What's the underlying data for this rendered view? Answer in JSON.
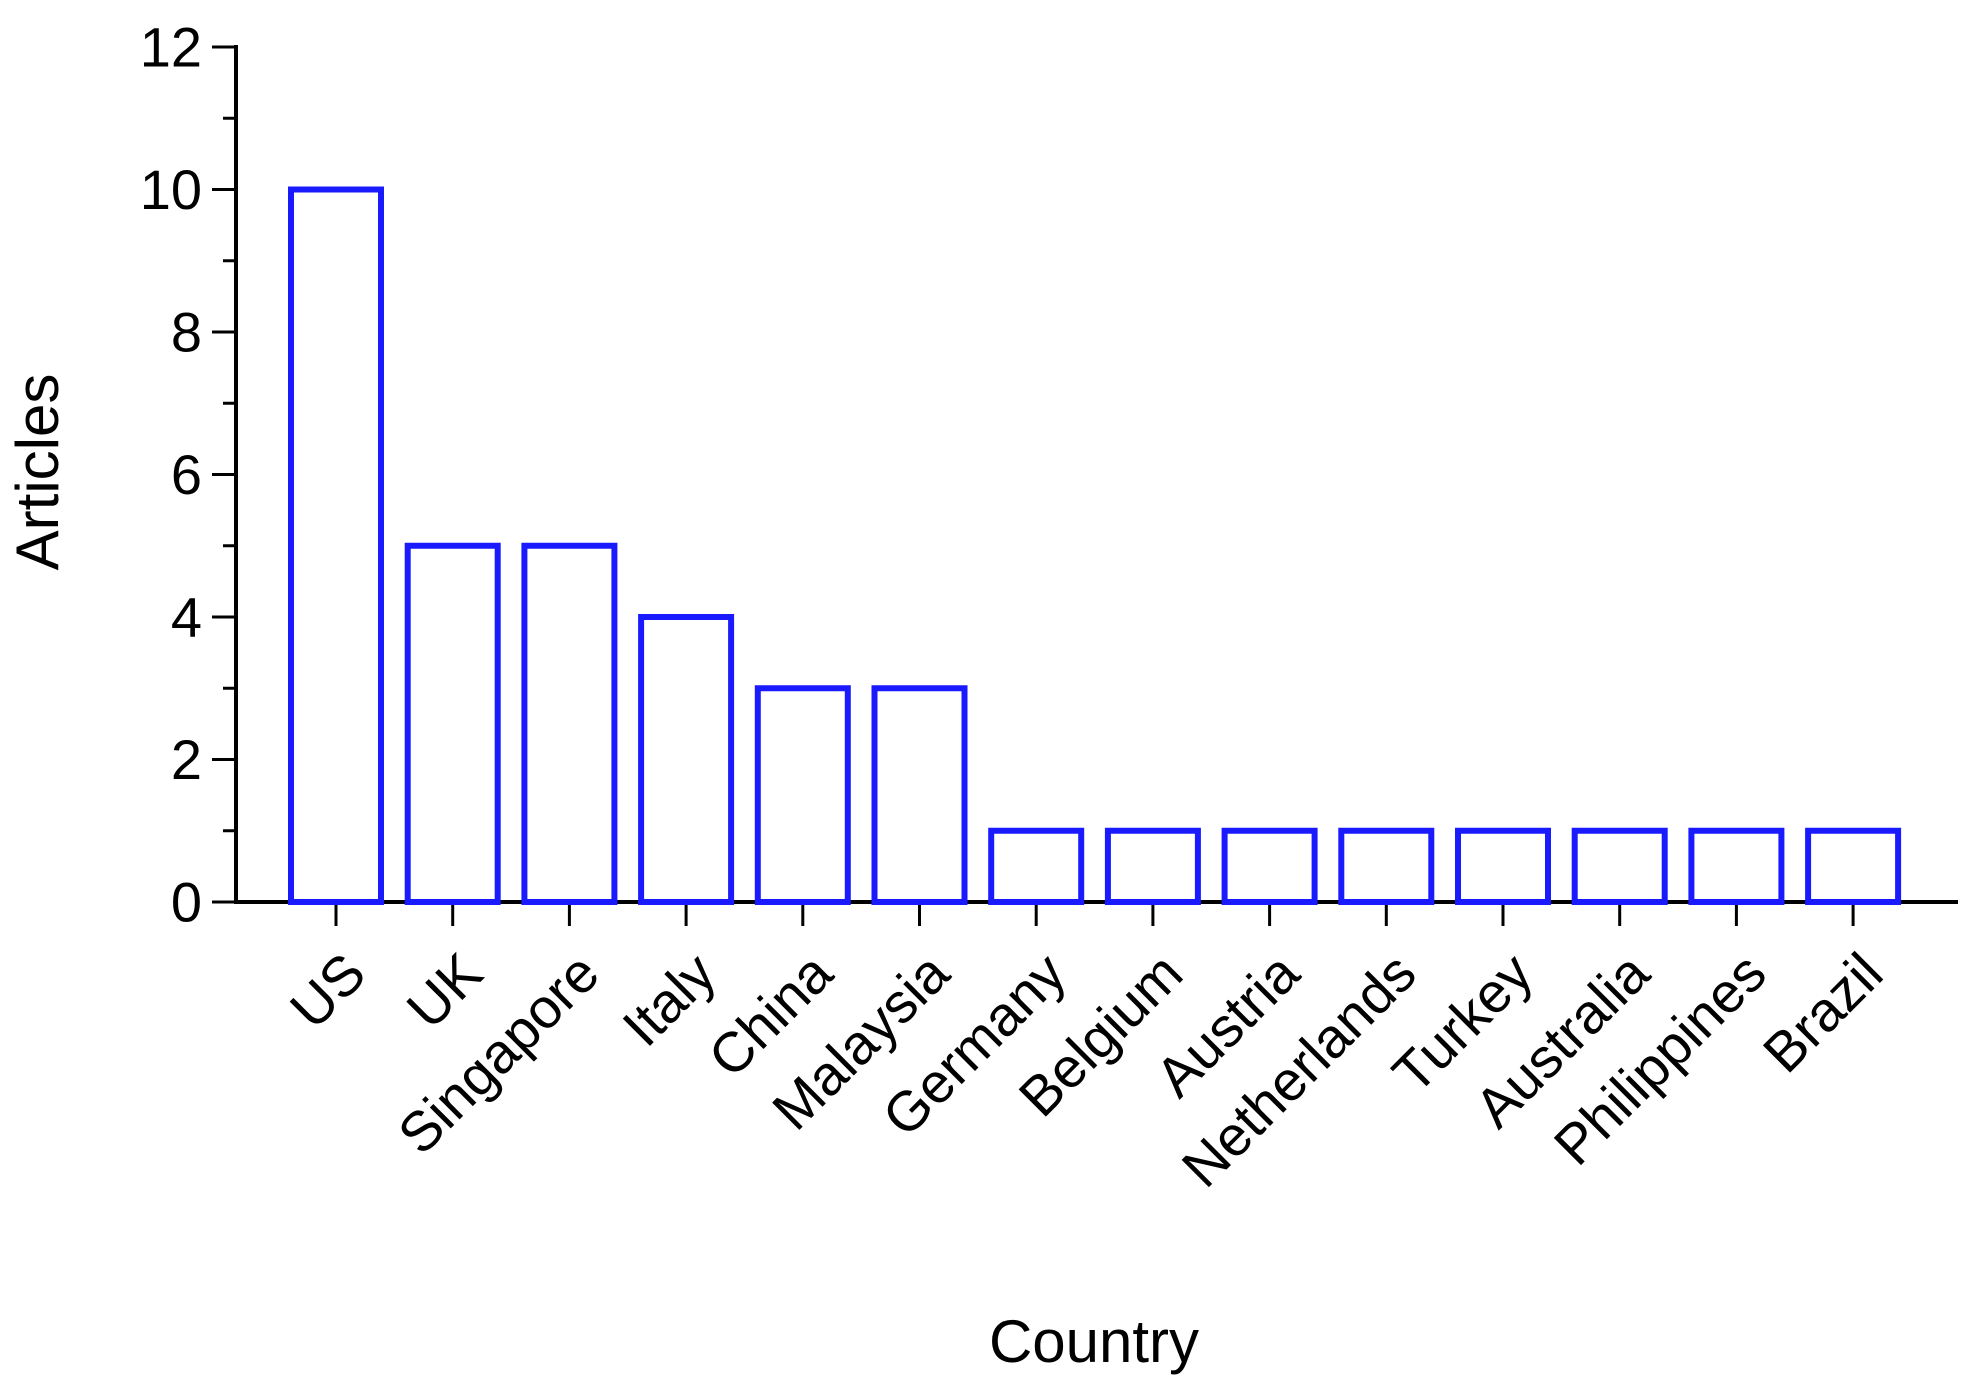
{
  "chart_data": {
    "type": "bar",
    "title": "",
    "xlabel": "Country",
    "ylabel": "Articles",
    "categories": [
      "US",
      "UK",
      "Singapore",
      "Italy",
      "China",
      "Malaysia",
      "Germany",
      "Belgium",
      "Austria",
      "Netherlands",
      "Turkey",
      "Australia",
      "Philippines",
      "Brazil"
    ],
    "values": [
      10,
      5,
      5,
      4,
      3,
      3,
      1,
      1,
      1,
      1,
      1,
      1,
      1,
      1
    ],
    "ylim": [
      0,
      12
    ],
    "y_major_ticks": [
      0,
      2,
      4,
      6,
      8,
      10,
      12
    ],
    "y_minor_step": 1,
    "grid": false,
    "bar_fill": "#ffffff",
    "bar_stroke": "#1a1aff",
    "tick_label_rotation_deg": -45
  }
}
